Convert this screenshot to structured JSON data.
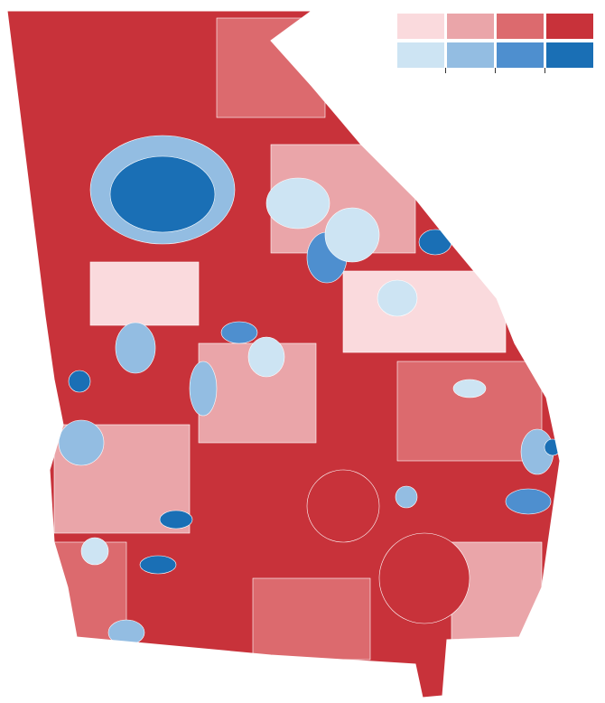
{
  "legend": {
    "rows": [
      [
        "#fadadd",
        "#eaa5a9",
        "#dc6a6e",
        "#c8323a"
      ],
      [
        "#cde4f3",
        "#93bde2",
        "#4e8fcf",
        "#1a6fb5"
      ]
    ]
  }
}
